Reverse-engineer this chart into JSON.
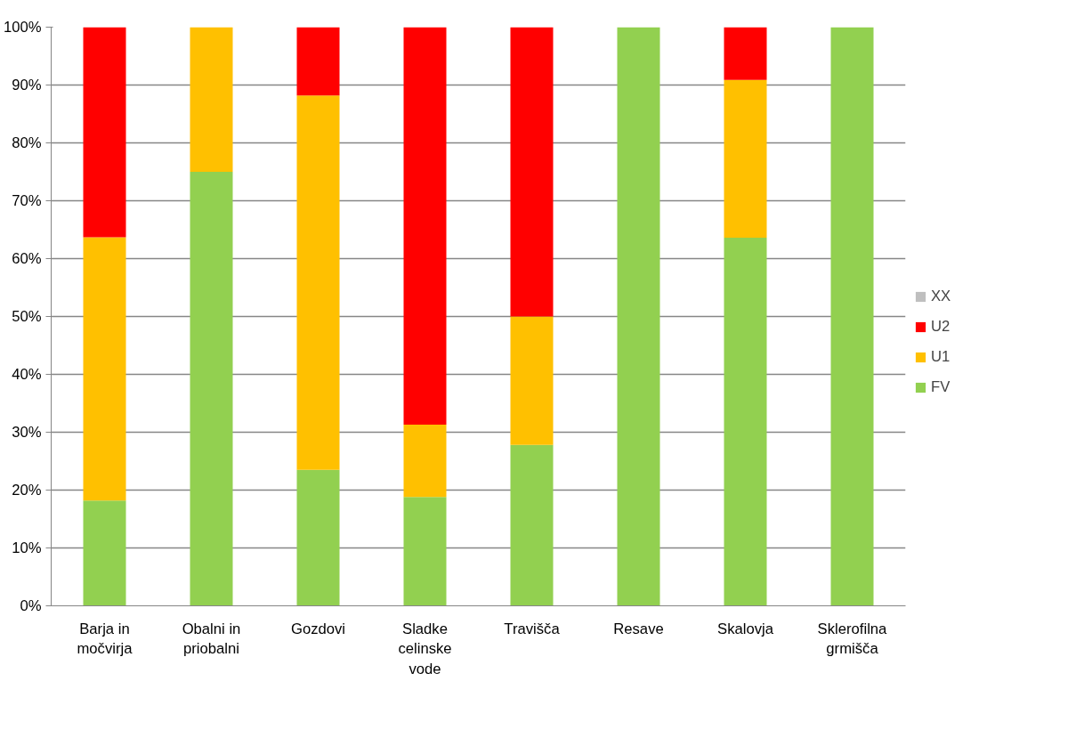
{
  "chart_data": {
    "type": "bar",
    "stacked": true,
    "categories": [
      "Barja in močvirja",
      "Obalni in priobalni",
      "Gozdovi",
      "Sladke celinske vode",
      "Travišča",
      "Resave",
      "Skalovja",
      "Sklerofilna grmišča"
    ],
    "series": [
      {
        "name": "FV",
        "color": "#92d050",
        "values": [
          18.2,
          75,
          23.5,
          18.8,
          27.8,
          100,
          63.6,
          100
        ]
      },
      {
        "name": "U1",
        "color": "#ffc000",
        "values": [
          45.5,
          25,
          64.7,
          12.5,
          22.2,
          0,
          27.3,
          0
        ]
      },
      {
        "name": "U2",
        "color": "#ff0000",
        "values": [
          36.3,
          0,
          11.8,
          68.7,
          50,
          0,
          9.1,
          0
        ]
      },
      {
        "name": "XX",
        "color": "#bfbfbf",
        "values": [
          0,
          0,
          0,
          0,
          0,
          0,
          0,
          0
        ]
      }
    ],
    "ylim": [
      0,
      100
    ],
    "yticks": [
      {
        "value": 0,
        "label": "0%"
      },
      {
        "value": 10,
        "label": "10%"
      },
      {
        "value": 20,
        "label": "20%"
      },
      {
        "value": 30,
        "label": "30%"
      },
      {
        "value": 40,
        "label": "40%"
      },
      {
        "value": 50,
        "label": "50%"
      },
      {
        "value": 60,
        "label": "60%"
      },
      {
        "value": 70,
        "label": "70%"
      },
      {
        "value": 80,
        "label": "80%"
      },
      {
        "value": 90,
        "label": "90%"
      },
      {
        "value": 100,
        "label": "100%"
      }
    ],
    "grid": "y",
    "legend": "right"
  }
}
